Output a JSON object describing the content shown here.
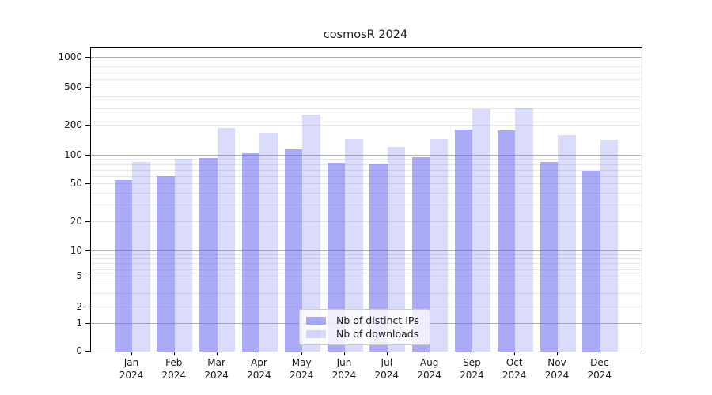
{
  "title": "cosmosR 2024",
  "legend": {
    "items": [
      {
        "label": "Nb of distinct IPs",
        "color": "#aaaaf6"
      },
      {
        "label": "Nb of downloads",
        "color": "#dbdbf9"
      }
    ]
  },
  "chart_data": {
    "type": "bar",
    "title": "cosmosR 2024",
    "categories": [
      "Jan 2024",
      "Feb 2024",
      "Mar 2024",
      "Apr 2024",
      "May 2024",
      "Jun 2024",
      "Jul 2024",
      "Aug 2024",
      "Sep 2024",
      "Oct 2024",
      "Nov 2024",
      "Dec 2024"
    ],
    "series": [
      {
        "name": "Nb of distinct IPs",
        "color": "#aaaaf6",
        "values": [
          55,
          61,
          94,
          105,
          116,
          84,
          83,
          96,
          183,
          181,
          86,
          70
        ]
      },
      {
        "name": "Nb of downloads",
        "color": "#dbdbf9",
        "values": [
          85,
          93,
          190,
          170,
          262,
          146,
          122,
          148,
          302,
          306,
          160,
          145
        ]
      }
    ],
    "yticks": [
      0,
      1,
      2,
      5,
      10,
      20,
      50,
      100,
      200,
      500,
      1000
    ],
    "yscale": "quasi-log (linear 0-1, log above)",
    "ylim": [
      0,
      1280
    ],
    "grid": true,
    "legend_position": "lower center",
    "colors": {
      "bar_dark": "#aaaaf6",
      "bar_light": "#dbdbf9",
      "grid_major": "#b0b0b0",
      "grid_minor": "#e7e7e7"
    }
  }
}
